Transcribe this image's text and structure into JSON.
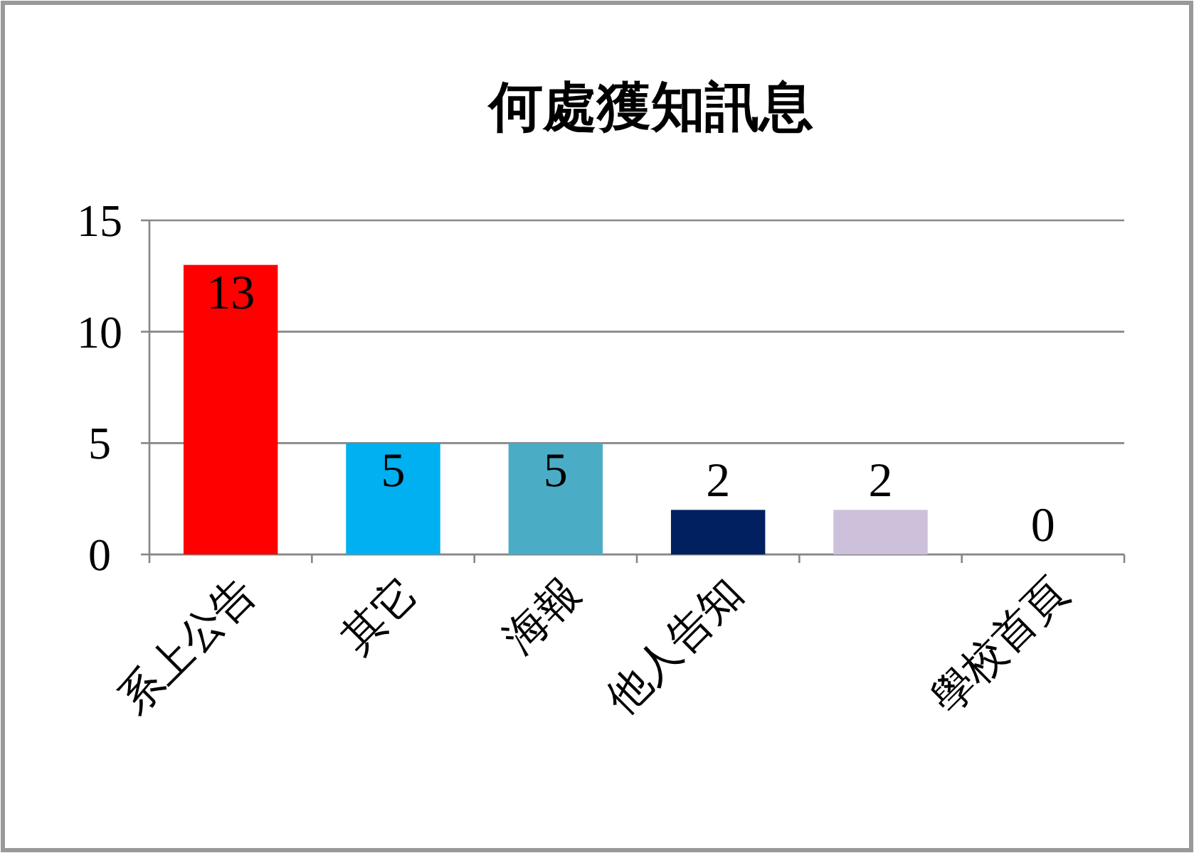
{
  "chart_data": {
    "type": "bar",
    "title": "何處獲知訊息",
    "categories": [
      "系上公告",
      "其它",
      "海報",
      "他人告知",
      null,
      "學校首頁"
    ],
    "values": [
      13,
      5,
      5,
      2,
      2,
      0
    ],
    "colors": [
      "#ff0000",
      "#00b0f0",
      "#4bacc6",
      "#002060",
      "#ccc0da",
      "#8064a2"
    ],
    "ylim": [
      0,
      15
    ],
    "yticks": [
      0,
      5,
      10,
      15
    ],
    "grid": "y",
    "data_labels": true
  }
}
